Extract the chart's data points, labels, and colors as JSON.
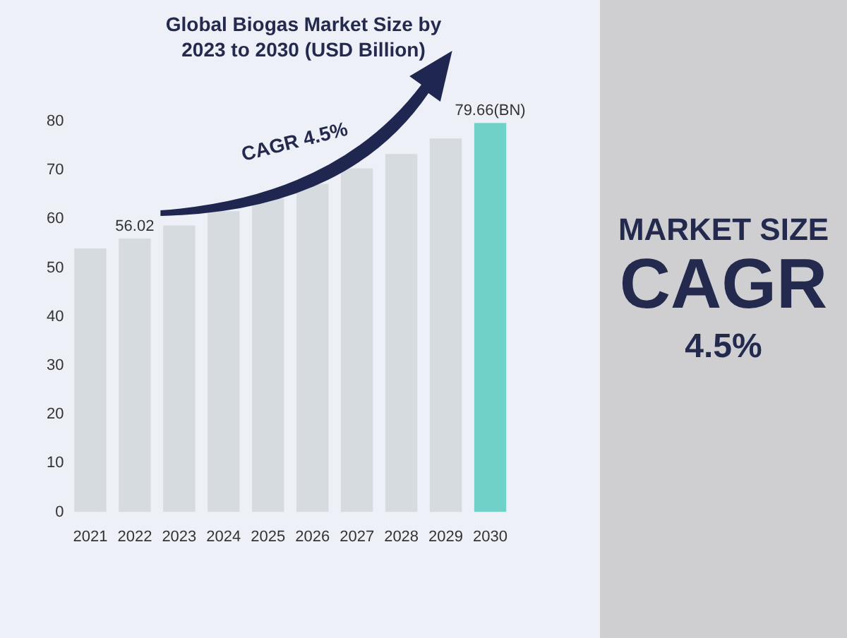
{
  "chart_data": {
    "type": "bar",
    "title": "Global Biogas Market Size by 2023 to 2030 (USD Billion)",
    "categories": [
      "2021",
      "2022",
      "2023",
      "2024",
      "2025",
      "2026",
      "2027",
      "2028",
      "2029",
      "2030"
    ],
    "values": [
      54.0,
      56.02,
      58.7,
      61.6,
      64.2,
      67.2,
      70.4,
      73.3,
      76.5,
      79.66
    ],
    "colors": [
      "#d5dbdf",
      "#d5dbdf",
      "#d5dbdf",
      "#d5dbdf",
      "#d5dbdf",
      "#d5dbdf",
      "#d5dbdf",
      "#d5dbdf",
      "#d5dbdf",
      "#6fd1c8"
    ],
    "value_labels": [
      null,
      "56.02",
      null,
      null,
      null,
      null,
      null,
      null,
      null,
      "79.66(BN)"
    ],
    "ylim": [
      0,
      80
    ],
    "yticks": [
      0,
      10,
      20,
      30,
      40,
      50,
      60,
      70,
      80
    ],
    "grid": false,
    "legend": false,
    "annotations": [
      "CAGR 4.5%",
      "MARKET SIZE",
      "CAGR",
      "4.5%"
    ]
  }
}
